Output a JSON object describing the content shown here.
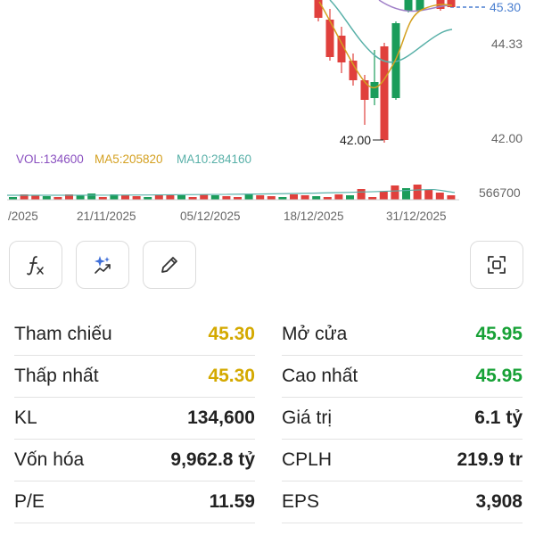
{
  "chart": {
    "price_labels": {
      "current": "45.30",
      "high_tick": "44.33",
      "low_tick": "42.00",
      "low_marker": "42.00"
    },
    "volume": {
      "vol_label": "VOL:134600",
      "ma5_label": "MA5:205820",
      "ma10_label": "MA10:284160",
      "axis_label": "566700"
    },
    "dates": [
      "/2025",
      "21/11/2025",
      "05/12/2025",
      "18/12/2025",
      "31/12/2025"
    ],
    "colors": {
      "up": "#1a9c5a",
      "down": "#e0403c",
      "ma5": "#d4a020",
      "ma10": "#58b0a8",
      "ma_purple": "#a080c8",
      "ref": "#4a7fd0"
    }
  },
  "toolbar": {
    "buttons": [
      {
        "name": "formula-icon"
      },
      {
        "name": "ai-sparkle-icon"
      },
      {
        "name": "pencil-icon"
      },
      {
        "name": "fullscreen-icon"
      }
    ]
  },
  "stats": {
    "rows": [
      {
        "l_label": "Tham chiếu",
        "l_value": "45.30",
        "l_color": "yellow",
        "r_label": "Mở cửa",
        "r_value": "45.95",
        "r_color": "green"
      },
      {
        "l_label": "Thấp nhất",
        "l_value": "45.30",
        "l_color": "yellow",
        "r_label": "Cao nhất",
        "r_value": "45.95",
        "r_color": "green"
      },
      {
        "l_label": "KL",
        "l_value": "134,600",
        "l_color": "",
        "r_label": "Giá trị",
        "r_value": "6.1 tỷ",
        "r_color": ""
      },
      {
        "l_label": "Vốn hóa",
        "l_value": "9,962.8 tỷ",
        "l_color": "",
        "r_label": "CPLH",
        "r_value": "219.9 tr",
        "r_color": ""
      },
      {
        "l_label": "P/E",
        "l_value": "11.59",
        "l_color": "",
        "r_label": "EPS",
        "r_value": "3,908",
        "r_color": ""
      }
    ]
  }
}
